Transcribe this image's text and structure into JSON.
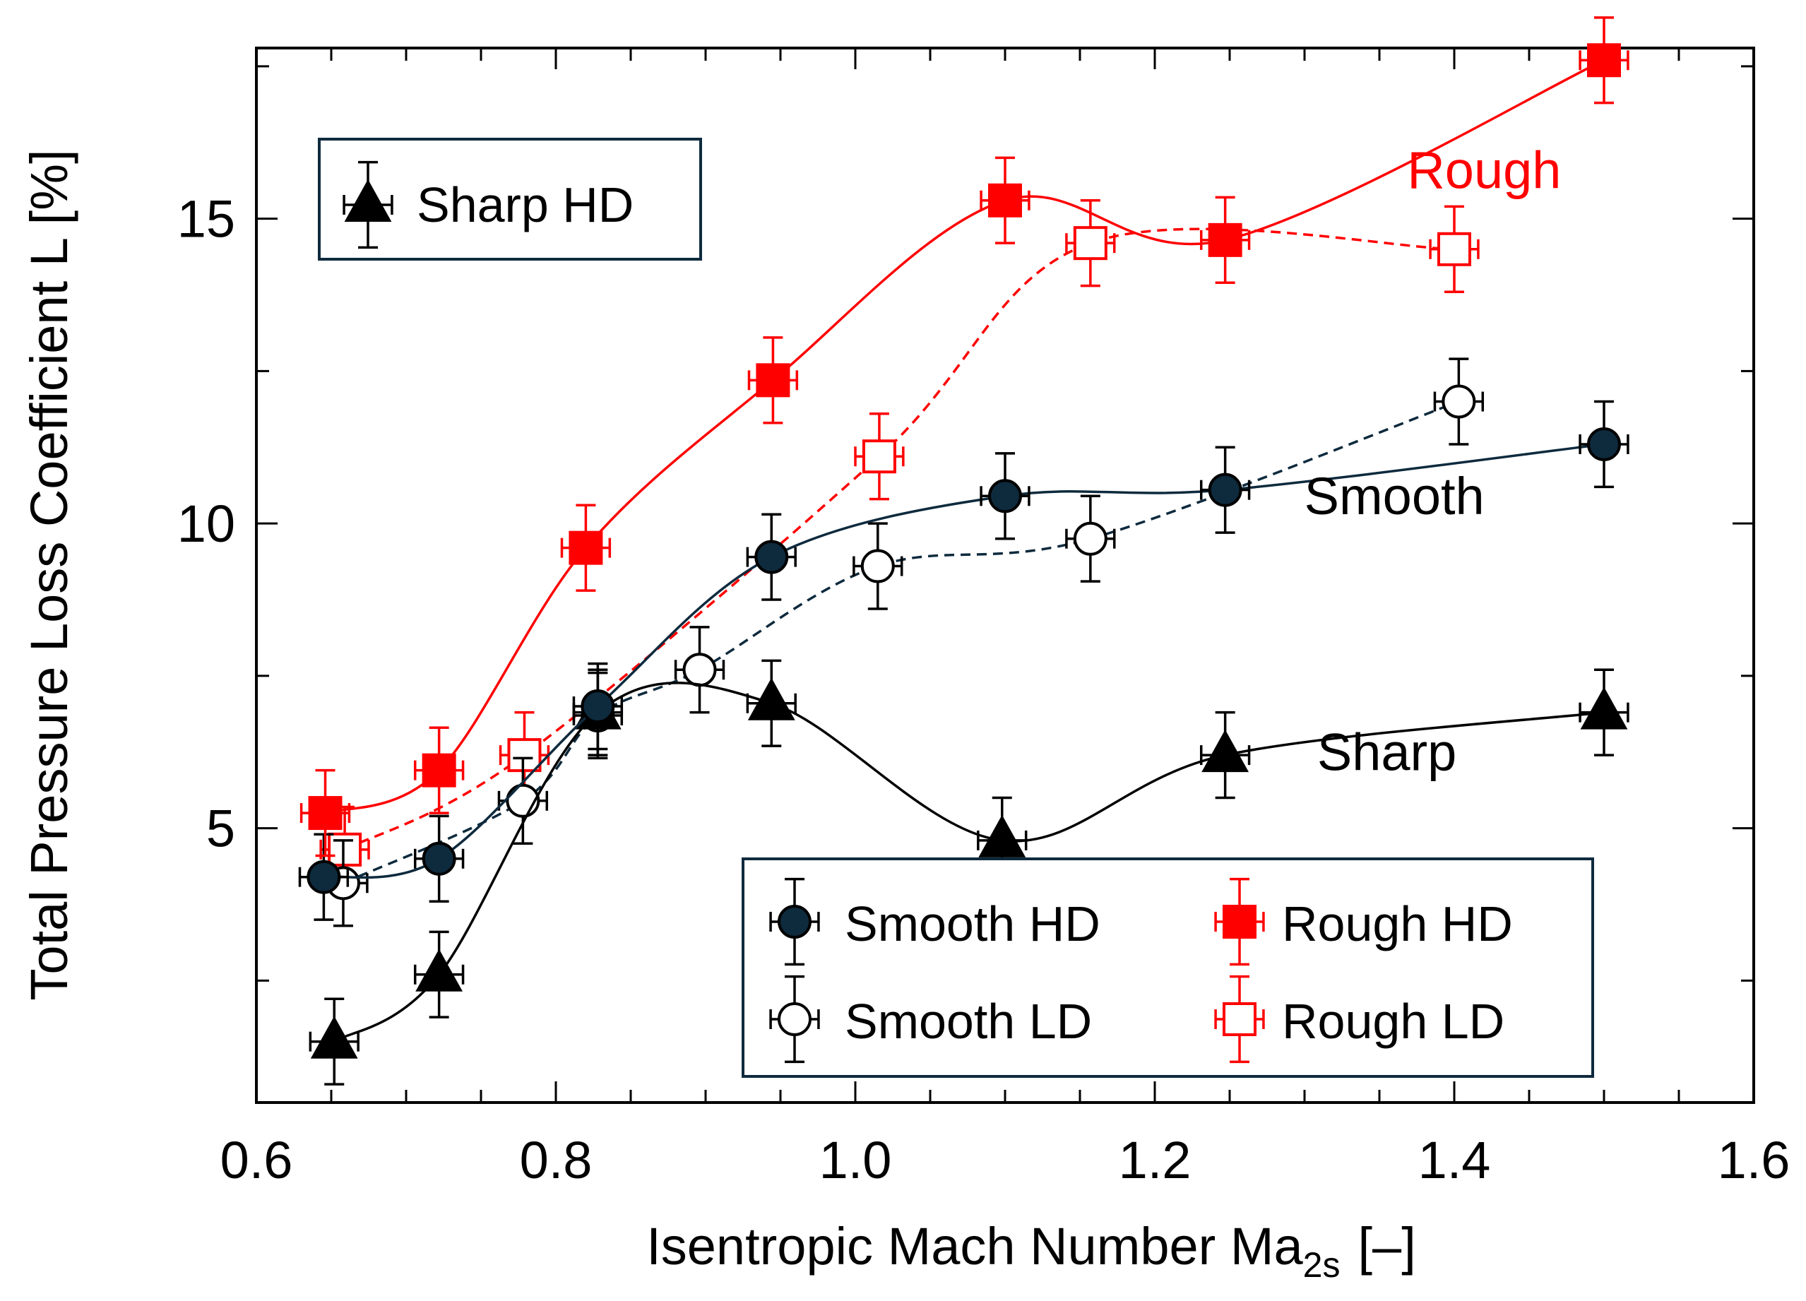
{
  "chart_data": {
    "type": "line",
    "xlabel": "Isentropic Mach Number  Ma",
    "xlabel_sub": "2s",
    "xlabel_unit": "[–]",
    "ylabel": "Total Pressure Loss Coefficient  L  [%]",
    "xlim": [
      0.6,
      1.6
    ],
    "ylim": [
      0.5,
      17.8
    ],
    "x_ticks": [
      0.6,
      0.8,
      1.0,
      1.2,
      1.4,
      1.6
    ],
    "x_tick_labels": [
      "0.6",
      "0.8",
      "1.0",
      "1.2",
      "1.4",
      "1.6"
    ],
    "y_ticks": [
      5,
      10,
      15
    ],
    "y_tick_labels": [
      "5",
      "10",
      "15"
    ],
    "series": [
      {
        "name": "Sharp HD",
        "marker": "triangle-filled",
        "line": "solid",
        "color": "#000000",
        "x": [
          0.652,
          0.722,
          0.828,
          0.944,
          1.098,
          1.247,
          1.5
        ],
        "y": [
          1.5,
          2.6,
          6.9,
          7.05,
          4.8,
          6.2,
          6.9
        ],
        "xerr": 0.016,
        "yerr": 0.7
      },
      {
        "name": "Smooth HD",
        "marker": "circle-filled",
        "line": "solid",
        "color": "#0e2a3d",
        "x": [
          0.645,
          0.722,
          0.828,
          0.944,
          1.1,
          1.247,
          1.5
        ],
        "y": [
          4.2,
          4.5,
          7.0,
          9.45,
          10.45,
          10.55,
          11.3
        ],
        "xerr": 0.016,
        "yerr": 0.7
      },
      {
        "name": "Smooth LD",
        "marker": "circle-open",
        "line": "dashed",
        "color": "#0e2a3d",
        "x": [
          0.658,
          0.778,
          0.828,
          0.896,
          1.015,
          1.157,
          1.403
        ],
        "y": [
          4.1,
          5.45,
          6.85,
          7.6,
          9.3,
          9.75,
          12.0
        ],
        "xerr": 0.016,
        "yerr": 0.7
      },
      {
        "name": "Rough HD",
        "marker": "square-filled",
        "line": "solid",
        "color": "#ff0000",
        "x": [
          0.646,
          0.722,
          0.82,
          0.945,
          1.1,
          1.247,
          1.5
        ],
        "y": [
          5.25,
          5.95,
          9.6,
          12.35,
          15.3,
          14.65,
          17.6
        ],
        "xerr": 0.016,
        "yerr": 0.7
      },
      {
        "name": "Rough LD",
        "marker": "square-open",
        "line": "dashed",
        "color": "#ff0000",
        "x": [
          0.659,
          0.779,
          1.016,
          1.157,
          1.4
        ],
        "y": [
          4.65,
          6.2,
          11.1,
          14.6,
          14.5
        ],
        "xerr": 0.016,
        "yerr": 0.7
      }
    ],
    "annotations": [
      {
        "text": "Rough",
        "x": 1.42,
        "y": 15.5,
        "color": "#ff0000"
      },
      {
        "text": "Smooth",
        "x": 1.36,
        "y": 10.15,
        "color": "#000000"
      },
      {
        "text": "Sharp",
        "x": 1.355,
        "y": 5.95,
        "color": "#000000"
      }
    ],
    "legend_top": {
      "placement": "top-left",
      "entries": [
        "Sharp HD"
      ]
    },
    "legend_bottom": {
      "placement": "bottom-right",
      "entries": [
        "Smooth HD",
        "Rough HD",
        "Smooth LD",
        "Rough LD"
      ]
    },
    "grid": false
  }
}
